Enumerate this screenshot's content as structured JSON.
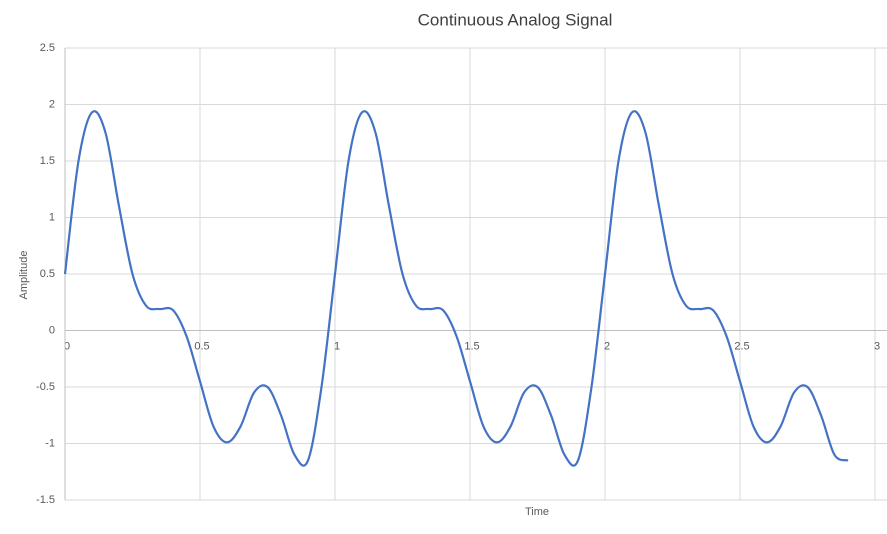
{
  "chart_data": {
    "type": "line",
    "title": "Continuous Analog Signal",
    "x_label": "Time",
    "y_label": "Amplitude",
    "x": [
      0,
      0.05,
      0.1,
      0.15,
      0.2,
      0.25,
      0.3,
      0.35,
      0.4,
      0.45,
      0.5,
      0.55,
      0.6,
      0.65,
      0.7,
      0.75,
      0.8,
      0.85,
      0.9,
      0.95,
      1,
      1.05,
      1.1,
      1.15,
      1.2,
      1.25,
      1.3,
      1.35,
      1.4,
      1.45,
      1.5,
      1.55,
      1.6,
      1.65,
      1.7,
      1.75,
      1.8,
      1.85,
      1.9,
      1.95,
      2,
      2.05,
      2.1,
      2.15,
      2.2,
      2.25,
      2.3,
      2.35,
      2.4,
      2.45,
      2.5,
      2.55,
      2.6,
      2.65,
      2.7,
      2.75,
      2.8,
      2.85,
      2.9
    ],
    "series": [
      {
        "name": "Amplitude",
        "color": "#4472c4",
        "values": [
          0.5,
          1.5,
          1.93,
          1.75,
          1.1,
          0.5,
          0.22,
          0.19,
          0.18,
          -0.05,
          -0.45,
          -0.85,
          -0.99,
          -0.85,
          -0.55,
          -0.5,
          -0.75,
          -1.1,
          -1.15,
          -0.5,
          0.5,
          1.5,
          1.93,
          1.75,
          1.1,
          0.5,
          0.22,
          0.19,
          0.18,
          -0.05,
          -0.45,
          -0.85,
          -0.99,
          -0.85,
          -0.55,
          -0.5,
          -0.75,
          -1.1,
          -1.15,
          -0.5,
          0.5,
          1.5,
          1.93,
          1.75,
          1.1,
          0.5,
          0.22,
          0.19,
          0.18,
          -0.05,
          -0.45,
          -0.85,
          -0.99,
          -0.85,
          -0.55,
          -0.5,
          -0.75,
          -1.1,
          -1.15
        ]
      }
    ],
    "xlim": [
      0,
      3
    ],
    "xticks": [
      0,
      0.5,
      1,
      1.5,
      2,
      2.5,
      3
    ],
    "ylim": [
      -1.5,
      2.5
    ],
    "yticks": [
      -1.5,
      -1,
      -0.5,
      0,
      0.5,
      1,
      1.5,
      2,
      2.5
    ],
    "grid": true
  }
}
